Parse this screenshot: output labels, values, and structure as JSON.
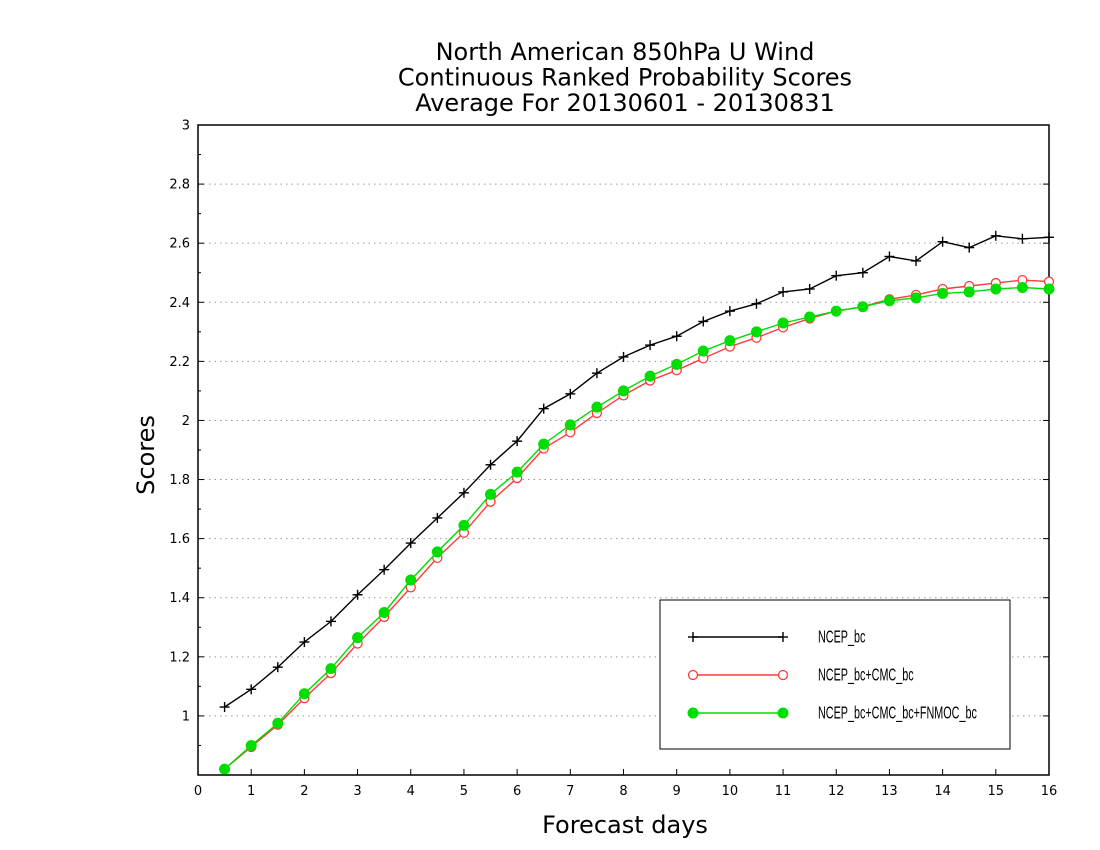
{
  "chart_data": {
    "type": "line",
    "title": [
      "North American 850hPa U Wind",
      "Continuous Ranked Probability Scores",
      "Average For 20130601 - 20130831"
    ],
    "xlabel": "Forecast days",
    "ylabel": "Scores",
    "xlim": [
      0,
      16
    ],
    "ylim": [
      0.8,
      3
    ],
    "xticks": [
      "0",
      "1",
      "2",
      "3",
      "4",
      "5",
      "6",
      "7",
      "8",
      "9",
      "10",
      "11",
      "12",
      "13",
      "14",
      "15",
      "16"
    ],
    "yticks": [
      "1",
      "1.2",
      "1.4",
      "1.6",
      "1.8",
      "2",
      "2.2",
      "2.4",
      "2.6",
      "2.8",
      "3"
    ],
    "grid": "horizontal dotted",
    "legend_position": "bottom-right",
    "x": [
      0.5,
      1,
      1.5,
      2,
      2.5,
      3,
      3.5,
      4,
      4.5,
      5,
      5.5,
      6,
      6.5,
      7,
      7.5,
      8,
      8.5,
      9,
      9.5,
      10,
      10.5,
      11,
      11.5,
      12,
      12.5,
      13,
      13.5,
      14,
      14.5,
      15,
      15.5,
      16
    ],
    "series": [
      {
        "name": "NCEP_bc",
        "color": "#000000",
        "marker": "plus",
        "values": [
          1.03,
          1.09,
          1.165,
          1.25,
          1.32,
          1.41,
          1.495,
          1.585,
          1.67,
          1.755,
          1.85,
          1.93,
          2.04,
          2.09,
          2.16,
          2.215,
          2.255,
          2.285,
          2.335,
          2.37,
          2.395,
          2.435,
          2.445,
          2.49,
          2.5,
          2.555,
          2.54,
          2.605,
          2.585,
          2.625,
          2.615,
          2.62
        ]
      },
      {
        "name": "NCEP_bc+CMC_bc",
        "color": "#ff3b3b",
        "marker": "open-circle",
        "values": [
          0.82,
          0.895,
          0.97,
          1.06,
          1.145,
          1.245,
          1.335,
          1.435,
          1.535,
          1.62,
          1.725,
          1.805,
          1.905,
          1.96,
          2.025,
          2.085,
          2.135,
          2.17,
          2.21,
          2.25,
          2.28,
          2.315,
          2.345,
          2.37,
          2.385,
          2.41,
          2.425,
          2.445,
          2.455,
          2.465,
          2.475,
          2.47
        ]
      },
      {
        "name": "NCEP_bc+CMC_bc+FNMOC_bc",
        "color": "#00dd00",
        "marker": "filled-circle",
        "values": [
          0.82,
          0.9,
          0.975,
          1.075,
          1.16,
          1.265,
          1.35,
          1.46,
          1.555,
          1.645,
          1.75,
          1.825,
          1.92,
          1.985,
          2.045,
          2.1,
          2.15,
          2.19,
          2.235,
          2.27,
          2.3,
          2.33,
          2.35,
          2.37,
          2.385,
          2.405,
          2.415,
          2.43,
          2.435,
          2.445,
          2.45,
          2.445
        ]
      }
    ]
  }
}
